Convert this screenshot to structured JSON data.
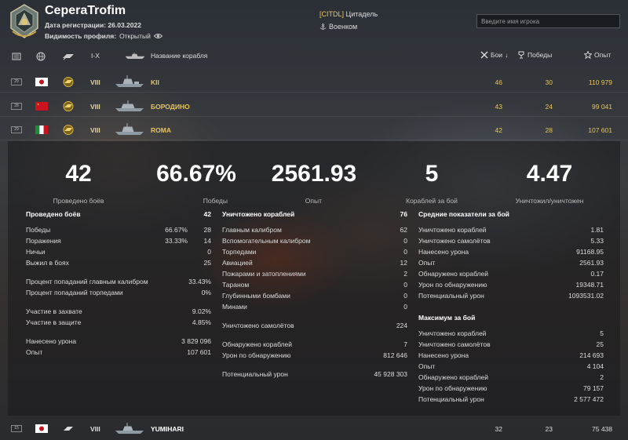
{
  "header": {
    "player_name": "CeperaTrofim",
    "registration_label": "Дата регистрации:",
    "registration_date": "26.03.2022",
    "visibility_label": "Видимость профиля:",
    "visibility_value": "Открытый",
    "clan_tag": "[CITDL]",
    "clan_name": "Цитадель",
    "rank": "Военком",
    "search_placeholder": "Введите имя игрока"
  },
  "columns": {
    "tiers": "I-X",
    "ship_name": "Название корабля",
    "battles": "Бои",
    "wins": "Победы",
    "xp": "Опыт"
  },
  "ships": [
    {
      "level": "29",
      "nation": "japan",
      "tier": "VIII",
      "name": "KII",
      "battles": "46",
      "wins": "30",
      "xp": "110 979"
    },
    {
      "level": "28",
      "nation": "ussr",
      "tier": "VIII",
      "name": "БОРОДИНО",
      "battles": "43",
      "wins": "24",
      "xp": "99 041"
    },
    {
      "level": "29",
      "nation": "italy",
      "tier": "VIII",
      "name": "ROMA",
      "battles": "42",
      "wins": "28",
      "xp": "107 601"
    }
  ],
  "summary": {
    "battles": "42",
    "battles_label": "Проведено боёв",
    "winrate": "66.67%",
    "winrate_label": "Победы",
    "avg_xp": "2561.93",
    "avg_xp_label": "Опыт",
    "kills": "5",
    "kills_label": "Кораблей за бой",
    "kd": "4.47",
    "kd_label": "Уничтожил/уничтожен"
  },
  "col1": {
    "title": "Проведено боёв",
    "title_value": "42",
    "rows": [
      {
        "label": "Победы",
        "v1": "66.67%",
        "v2": "28"
      },
      {
        "label": "Поражения",
        "v1": "33.33%",
        "v2": "14"
      },
      {
        "label": "Ничьи",
        "v1": "",
        "v2": "0"
      },
      {
        "label": "Выжил в боях",
        "v1": "",
        "v2": "25"
      }
    ],
    "rows2": [
      {
        "label": "Процент попаданий главным калибром",
        "v1": "33.43%"
      },
      {
        "label": "Процент попаданий торпедами",
        "v1": "0%"
      }
    ],
    "rows3": [
      {
        "label": "Участие в захвате",
        "v1": "9.02%"
      },
      {
        "label": "Участие в защите",
        "v1": "4.85%"
      }
    ],
    "rows4": [
      {
        "label": "Нанесено урона",
        "v1": "3 829 096"
      },
      {
        "label": "Опыт",
        "v1": "107 601"
      }
    ]
  },
  "col2": {
    "title": "Уничтожено кораблей",
    "title_value": "76",
    "rows": [
      {
        "label": "Главным калибром",
        "v1": "62"
      },
      {
        "label": "Вспомогательным калибром",
        "v1": "0"
      },
      {
        "label": "Торпедами",
        "v1": "0"
      },
      {
        "label": "Авиацией",
        "v1": "12"
      },
      {
        "label": "Пожарами и затоплениями",
        "v1": "2"
      },
      {
        "label": "Тараном",
        "v1": "0"
      },
      {
        "label": "Глубинными бомбами",
        "v1": "0"
      },
      {
        "label": "Минами",
        "v1": "0"
      }
    ],
    "rows2": [
      {
        "label": "Уничтожено самолётов",
        "v1": "224"
      }
    ],
    "rows3": [
      {
        "label": "Обнаружено кораблей",
        "v1": "7"
      },
      {
        "label": "Урон по обнаружению",
        "v1": "812 646"
      }
    ],
    "rows4": [
      {
        "label": "Потенциальный урон",
        "v1": "45 928 303"
      }
    ]
  },
  "col3": {
    "title": "Средние показатели за бой",
    "rows": [
      {
        "label": "Уничтожено кораблей",
        "v1": "1.81"
      },
      {
        "label": "Уничтожено самолётов",
        "v1": "5.33"
      },
      {
        "label": "Нанесено урона",
        "v1": "91168.95"
      },
      {
        "label": "Опыт",
        "v1": "2561.93"
      },
      {
        "label": "Обнаружено кораблей",
        "v1": "0.17"
      },
      {
        "label": "Урон по обнаружению",
        "v1": "19348.71"
      },
      {
        "label": "Потенциальный урон",
        "v1": "1093531.02"
      }
    ],
    "title2": "Максимум за бой",
    "rows2": [
      {
        "label": "Уничтожено кораблей",
        "v1": "5"
      },
      {
        "label": "Уничтожено самолётов",
        "v1": "25"
      },
      {
        "label": "Нанесено урона",
        "v1": "214 693"
      },
      {
        "label": "Опыт",
        "v1": "4 104"
      },
      {
        "label": "Обнаружено кораблей",
        "v1": "2"
      },
      {
        "label": "Урон по обнаружению",
        "v1": "79 157"
      },
      {
        "label": "Потенциальный урон",
        "v1": "2 577 472"
      }
    ]
  },
  "bottom_ship": {
    "level": "15",
    "nation": "japan",
    "tier": "VIII",
    "name": "YUMIHARI",
    "battles": "32",
    "wins": "23",
    "xp": "75 438"
  },
  "colors": {
    "accent": "#e8c45a",
    "text": "#e6e6e6"
  }
}
